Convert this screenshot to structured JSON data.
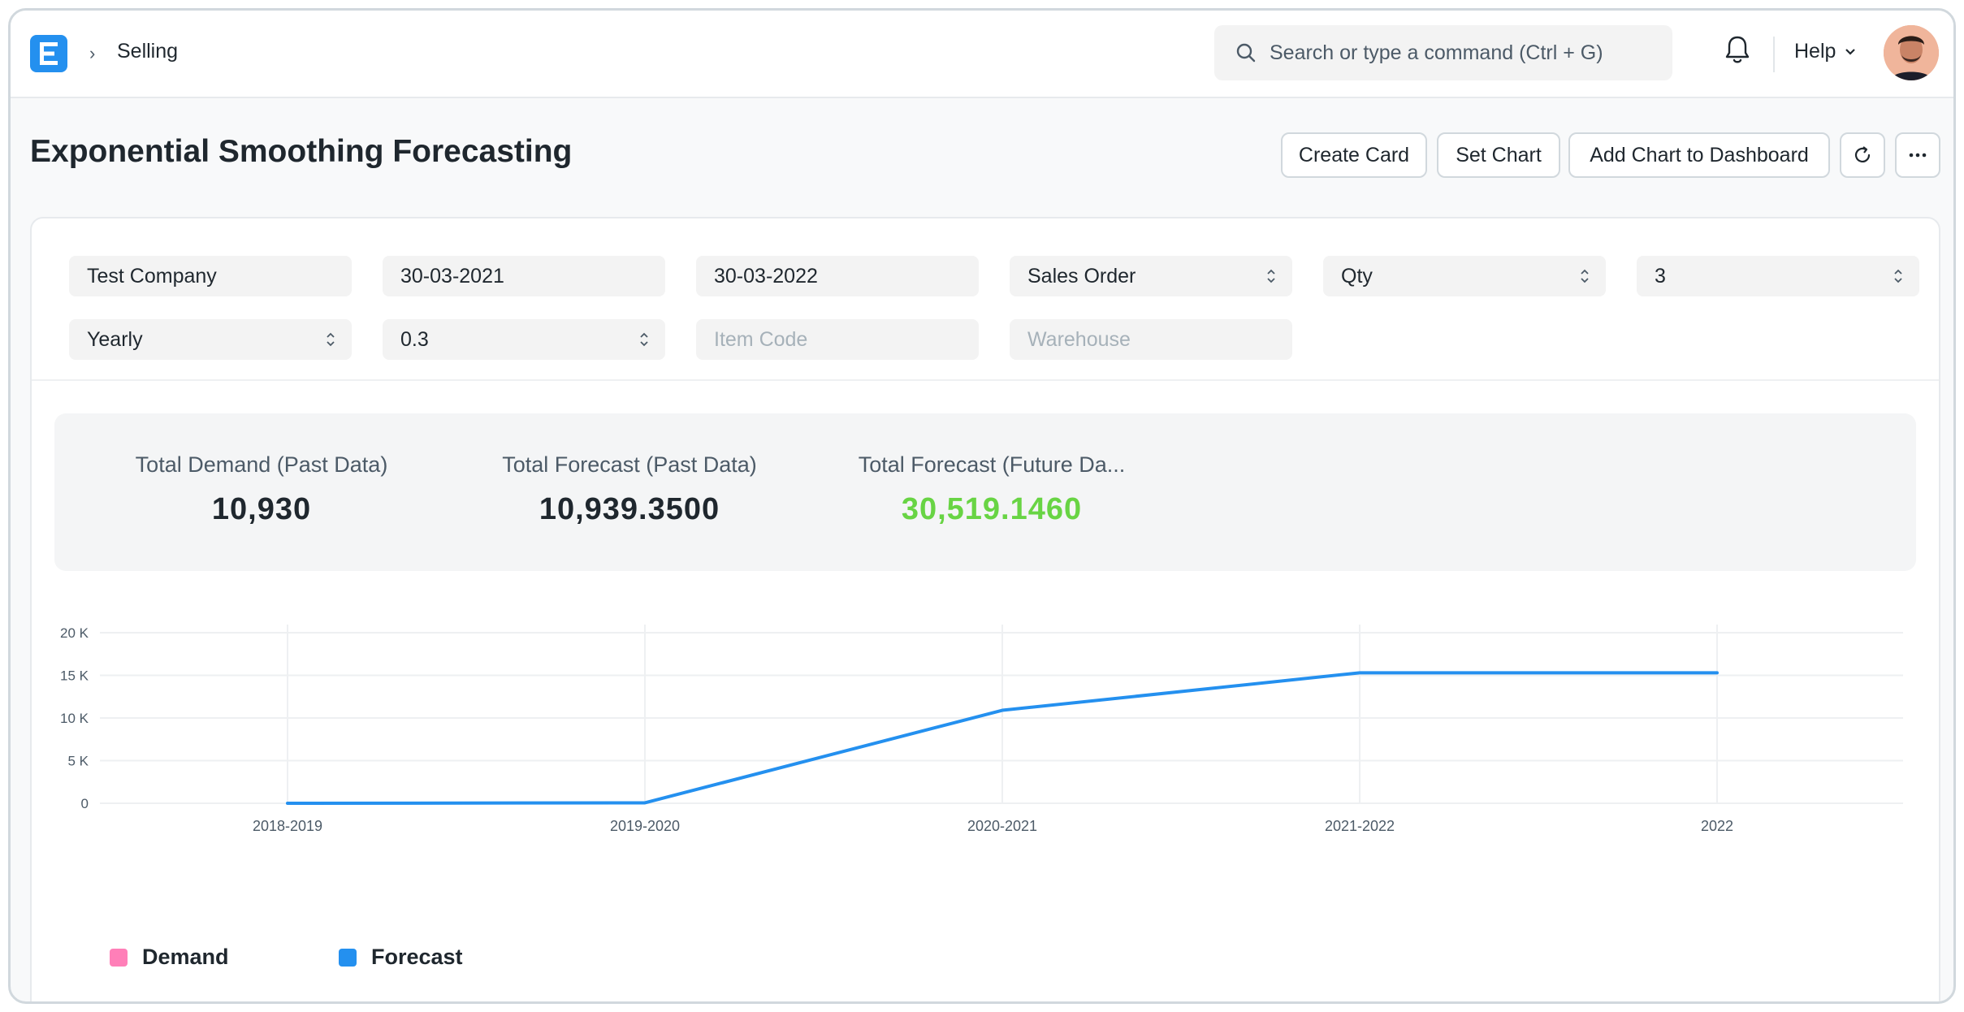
{
  "navbar": {
    "breadcrumb": "Selling",
    "search_placeholder": "Search or type a command (Ctrl + G)",
    "help_label": "Help"
  },
  "page": {
    "title": "Exponential Smoothing Forecasting",
    "buttons": {
      "create_card": "Create Card",
      "set_chart": "Set Chart",
      "add_to_dashboard": "Add Chart to Dashboard"
    }
  },
  "filters": {
    "company": "Test Company",
    "from_date": "30-03-2021",
    "to_date": "30-03-2022",
    "based_on_document": "Sales Order",
    "based_on_field": "Qty",
    "no_of_years": "3",
    "periodicity": "Yearly",
    "smoothing_constant": "0.3",
    "item_code_placeholder": "Item Code",
    "warehouse_placeholder": "Warehouse"
  },
  "summary": [
    {
      "label": "Total Demand (Past Data)",
      "value": "10,930",
      "color": "#1f272e"
    },
    {
      "label": "Total Forecast (Past Data)",
      "value": "10,939.3500",
      "color": "#1f272e"
    },
    {
      "label": "Total Forecast (Future Da...",
      "value": "30,519.1460",
      "color": "#68d444"
    }
  ],
  "colors": {
    "primary": "#2490ef",
    "demand": "#ff7fb8",
    "forecast": "#2490ef",
    "positive": "#68d444"
  },
  "chart_data": {
    "type": "line",
    "categories": [
      "2018-2019",
      "2019-2020",
      "2020-2021",
      "2021-2022",
      "2022"
    ],
    "series": [
      {
        "name": "Demand",
        "values": [
          null,
          null,
          null,
          null,
          null
        ]
      },
      {
        "name": "Forecast",
        "values": [
          0,
          50,
          10900,
          15300,
          15300
        ]
      }
    ],
    "y_ticks": [
      "0",
      "5 K",
      "10 K",
      "15 K",
      "20 K"
    ],
    "ylim": [
      0,
      20000
    ],
    "grid": true,
    "legend": "bottom-left"
  }
}
